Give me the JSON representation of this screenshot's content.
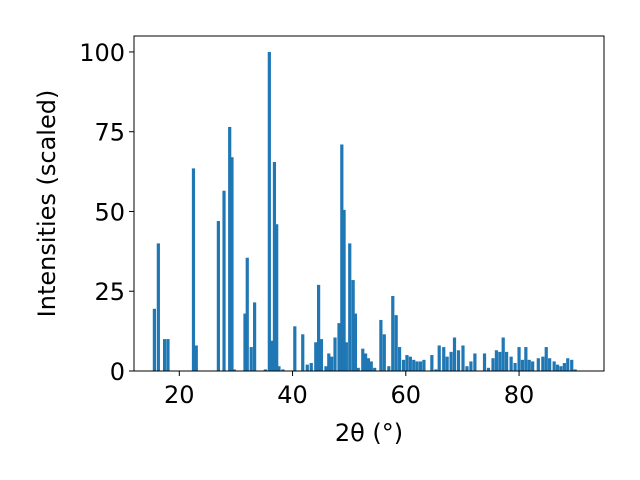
{
  "chart_data": {
    "type": "bar",
    "xlabel": "2θ (°)",
    "ylabel": "Intensities (scaled)",
    "xlim": [
      12,
      95
    ],
    "ylim": [
      0,
      105
    ],
    "xticks": [
      20,
      40,
      60,
      80
    ],
    "yticks": [
      0,
      25,
      50,
      75,
      100
    ],
    "bar_color": "#1f77b4",
    "grid": false,
    "x": [
      15.6,
      16.3,
      17.4,
      18.0,
      22.5,
      23.0,
      26.9,
      27.9,
      28.9,
      29.3,
      29.7,
      31.6,
      32.0,
      32.7,
      33.3,
      35.2,
      35.9,
      36.3,
      36.8,
      37.2,
      37.6,
      38.3,
      40.4,
      41.8,
      42.6,
      43.3,
      44.1,
      44.6,
      45.1,
      45.9,
      46.4,
      46.9,
      47.5,
      48.2,
      48.7,
      49.1,
      49.5,
      50.1,
      50.7,
      51.1,
      51.6,
      52.4,
      52.9,
      53.4,
      53.9,
      54.5,
      55.6,
      56.2,
      57.0,
      57.7,
      58.3,
      58.9,
      59.6,
      60.2,
      60.8,
      61.4,
      62.0,
      62.6,
      63.2,
      64.6,
      65.3,
      65.9,
      66.7,
      67.3,
      68.0,
      68.6,
      69.3,
      70.1,
      70.8,
      71.5,
      72.2,
      73.9,
      74.6,
      75.4,
      76.0,
      76.6,
      77.2,
      77.8,
      78.6,
      79.3,
      80.0,
      80.6,
      81.2,
      81.8,
      82.4,
      83.4,
      84.2,
      84.8,
      85.4,
      86.2,
      86.8,
      87.4,
      88.0,
      88.6,
      89.3,
      89.9
    ],
    "values": [
      19.5,
      40,
      10,
      10,
      63.5,
      8,
      47,
      56.5,
      76.5,
      67,
      0.5,
      18,
      35.5,
      7.5,
      21.5,
      0.5,
      100,
      9.5,
      65.5,
      46,
      1.5,
      0.5,
      14,
      11.5,
      2,
      2.5,
      9,
      27,
      10,
      1.5,
      5.5,
      4.5,
      10.5,
      15,
      71,
      50.5,
      9,
      40,
      28.5,
      18,
      1,
      7,
      5.5,
      4,
      3,
      1,
      16,
      11.5,
      1.5,
      23.5,
      17.5,
      7.5,
      3.5,
      5,
      4.5,
      3.5,
      3,
      3,
      3.5,
      5,
      0.5,
      8,
      7.5,
      4.5,
      6,
      10.5,
      6.5,
      8,
      1.5,
      3,
      5.5,
      5.5,
      1,
      4,
      6.5,
      6,
      10.5,
      6,
      4.5,
      2.5,
      7.5,
      3.5,
      7.5,
      3.5,
      3,
      4,
      4.5,
      7.5,
      4,
      3,
      2,
      1.5,
      2.5,
      4,
      3.5,
      0.5
    ]
  }
}
